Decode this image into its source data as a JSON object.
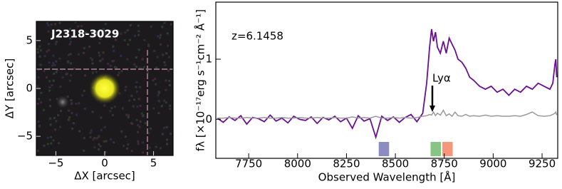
{
  "chart_data": [
    {
      "type": "image",
      "label": "J2318-3029",
      "xlabel": "ΔX [arcsec]",
      "ylabel": "ΔY [arcsec]",
      "xlim": [
        -7,
        7
      ],
      "ylim": [
        -7,
        7
      ],
      "xticks": [
        {
          "value": -5,
          "label": "−5"
        },
        0,
        5
      ],
      "yticks": [
        {
          "value": -5,
          "label": "−5"
        },
        0,
        5
      ]
    },
    {
      "type": "line",
      "annotation": "z=6.1458",
      "line_label": "Lyα",
      "line_x": 8689,
      "xlabel": "Observed Wavelength [Å]",
      "ylabel": "fλ [×10⁻¹⁷erg s⁻¹cm⁻² Å⁻¹]",
      "xlim": [
        7582,
        9330
      ],
      "ylim": [
        -0.65,
        1.95
      ],
      "xticks": [
        7750,
        8000,
        8250,
        8500,
        8750,
        9000,
        9250
      ],
      "yticks": [
        0,
        1
      ],
      "x": [
        7590,
        7620,
        7650,
        7680,
        7710,
        7740,
        7770,
        7800,
        7830,
        7860,
        7890,
        7920,
        7950,
        7980,
        8010,
        8040,
        8070,
        8100,
        8130,
        8160,
        8190,
        8220,
        8250,
        8280,
        8310,
        8340,
        8370,
        8400,
        8430,
        8460,
        8490,
        8520,
        8550,
        8580,
        8610,
        8640,
        8660,
        8675,
        8685,
        8695,
        8705,
        8715,
        8730,
        8745,
        8760,
        8775,
        8790,
        8805,
        8820,
        8840,
        8860,
        8880,
        8900,
        8930,
        8960,
        8990,
        9020,
        9050,
        9080,
        9110,
        9140,
        9170,
        9200,
        9230,
        9260,
        9290,
        9305,
        9315,
        9320,
        9325
      ],
      "series": [
        {
          "color": "#6a0f92",
          "values": [
            0.02,
            -0.05,
            0.04,
            -0.02,
            0.06,
            -0.08,
            0.03,
            0.01,
            -0.04,
            0.07,
            -0.03,
            0.02,
            -0.06,
            0.05,
            0.0,
            -0.02,
            0.04,
            -0.07,
            0.03,
            -0.01,
            0.05,
            -0.04,
            0.02,
            -0.15,
            0.06,
            -0.03,
            0.01,
            -0.3,
            0.05,
            -0.02,
            0.04,
            -0.05,
            0.03,
            0.08,
            -0.04,
            0.1,
            0.6,
            1.2,
            1.5,
            1.3,
            1.45,
            1.2,
            1.1,
            1.3,
            1.1,
            1.35,
            1.25,
            1.15,
            1.0,
            0.95,
            0.85,
            0.7,
            0.65,
            0.55,
            0.5,
            0.55,
            0.45,
            0.5,
            0.4,
            0.5,
            0.45,
            0.55,
            0.5,
            0.6,
            0.55,
            0.5,
            0.6,
            0.9,
            1.0,
            0.7
          ]
        },
        {
          "color": "#999999",
          "values": [
            0.02,
            0.02,
            0.03,
            0.02,
            0.02,
            0.03,
            0.02,
            0.02,
            0.03,
            0.02,
            0.02,
            0.03,
            0.02,
            0.02,
            0.03,
            0.02,
            0.02,
            0.03,
            0.02,
            0.02,
            0.03,
            0.02,
            0.02,
            0.04,
            0.02,
            0.03,
            0.02,
            0.05,
            0.02,
            0.02,
            0.03,
            0.02,
            0.03,
            0.02,
            0.03,
            0.05,
            0.06,
            0.08,
            0.07,
            0.12,
            0.06,
            0.1,
            0.07,
            0.15,
            0.06,
            0.09,
            0.05,
            0.12,
            0.06,
            0.05,
            0.08,
            0.05,
            0.06,
            0.05,
            0.07,
            0.05,
            0.06,
            0.05,
            0.05,
            0.06,
            0.05,
            0.08,
            0.12,
            0.06,
            0.05,
            0.06,
            0.08,
            0.1,
            0.12,
            0.07
          ]
        }
      ],
      "bands": [
        {
          "x": [
            8415,
            8468
          ],
          "color": "#8a8cc2"
        },
        {
          "x": [
            8680,
            8733
          ],
          "color": "#86c584"
        },
        {
          "x": [
            8740,
            8793
          ],
          "color": "#f5977a"
        }
      ]
    }
  ]
}
